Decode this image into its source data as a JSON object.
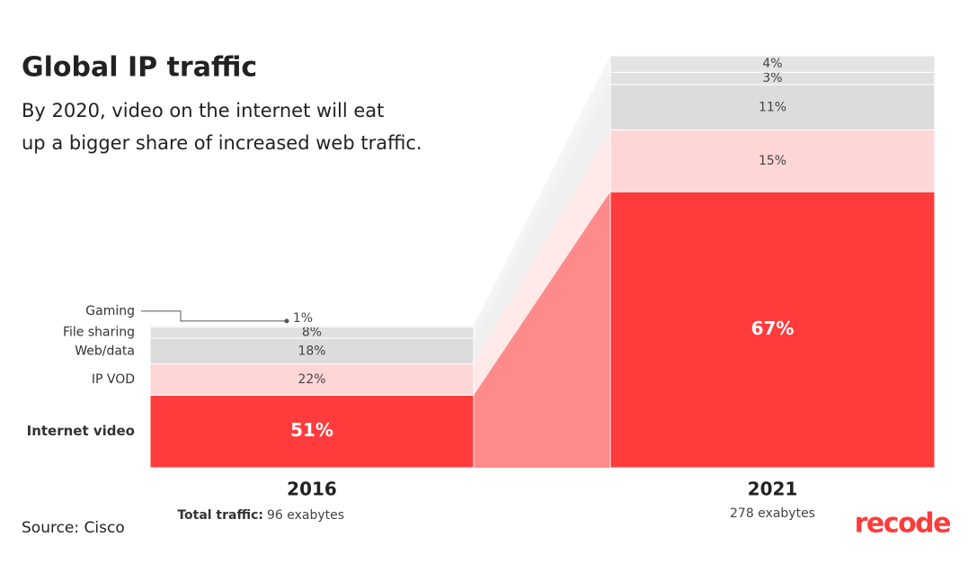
{
  "chart_data": {
    "type": "stacked_bar",
    "title": "Global IP traffic",
    "subtitle": [
      "By 2020, video on the internet will eat",
      "up a bigger share of increased web traffic."
    ],
    "categories": [
      "2016",
      "2021"
    ],
    "series": [
      {
        "name": "Internet video",
        "color": "#ff3b3b",
        "link_color": "#ff8a8a",
        "text_color": "#ffffff",
        "values": [
          51,
          67
        ],
        "value_labels": [
          "51%",
          "67%"
        ]
      },
      {
        "name": "IP VOD",
        "color": "#ffd6d6",
        "link_color": "#ffe9e9",
        "text_color": "#444444",
        "values": [
          22,
          15
        ],
        "value_labels": [
          "22%",
          "15%"
        ]
      },
      {
        "name": "Web/data",
        "color": "#dcdcdc",
        "link_color": "#f0f0f0",
        "text_color": "#444444",
        "values": [
          18,
          11
        ],
        "value_labels": [
          "18%",
          "11%"
        ]
      },
      {
        "name": "File sharing",
        "color": "#e0e0e0",
        "link_color": "#f3f3f3",
        "text_color": "#444444",
        "values": [
          8,
          3
        ],
        "value_labels": [
          "8%",
          "3%"
        ]
      },
      {
        "name": "Gaming",
        "color": "#e4e4e4",
        "link_color": "#f5f5f5",
        "text_color": "#444444",
        "values": [
          1,
          4
        ],
        "value_labels": [
          "1%",
          "4%"
        ]
      }
    ],
    "totals": {
      "label": "Total traffic:",
      "values": [
        96,
        278
      ],
      "value_labels": [
        "96 exabytes",
        "278 exabytes"
      ]
    },
    "source": "Source: Cisco",
    "logo": "recode"
  }
}
